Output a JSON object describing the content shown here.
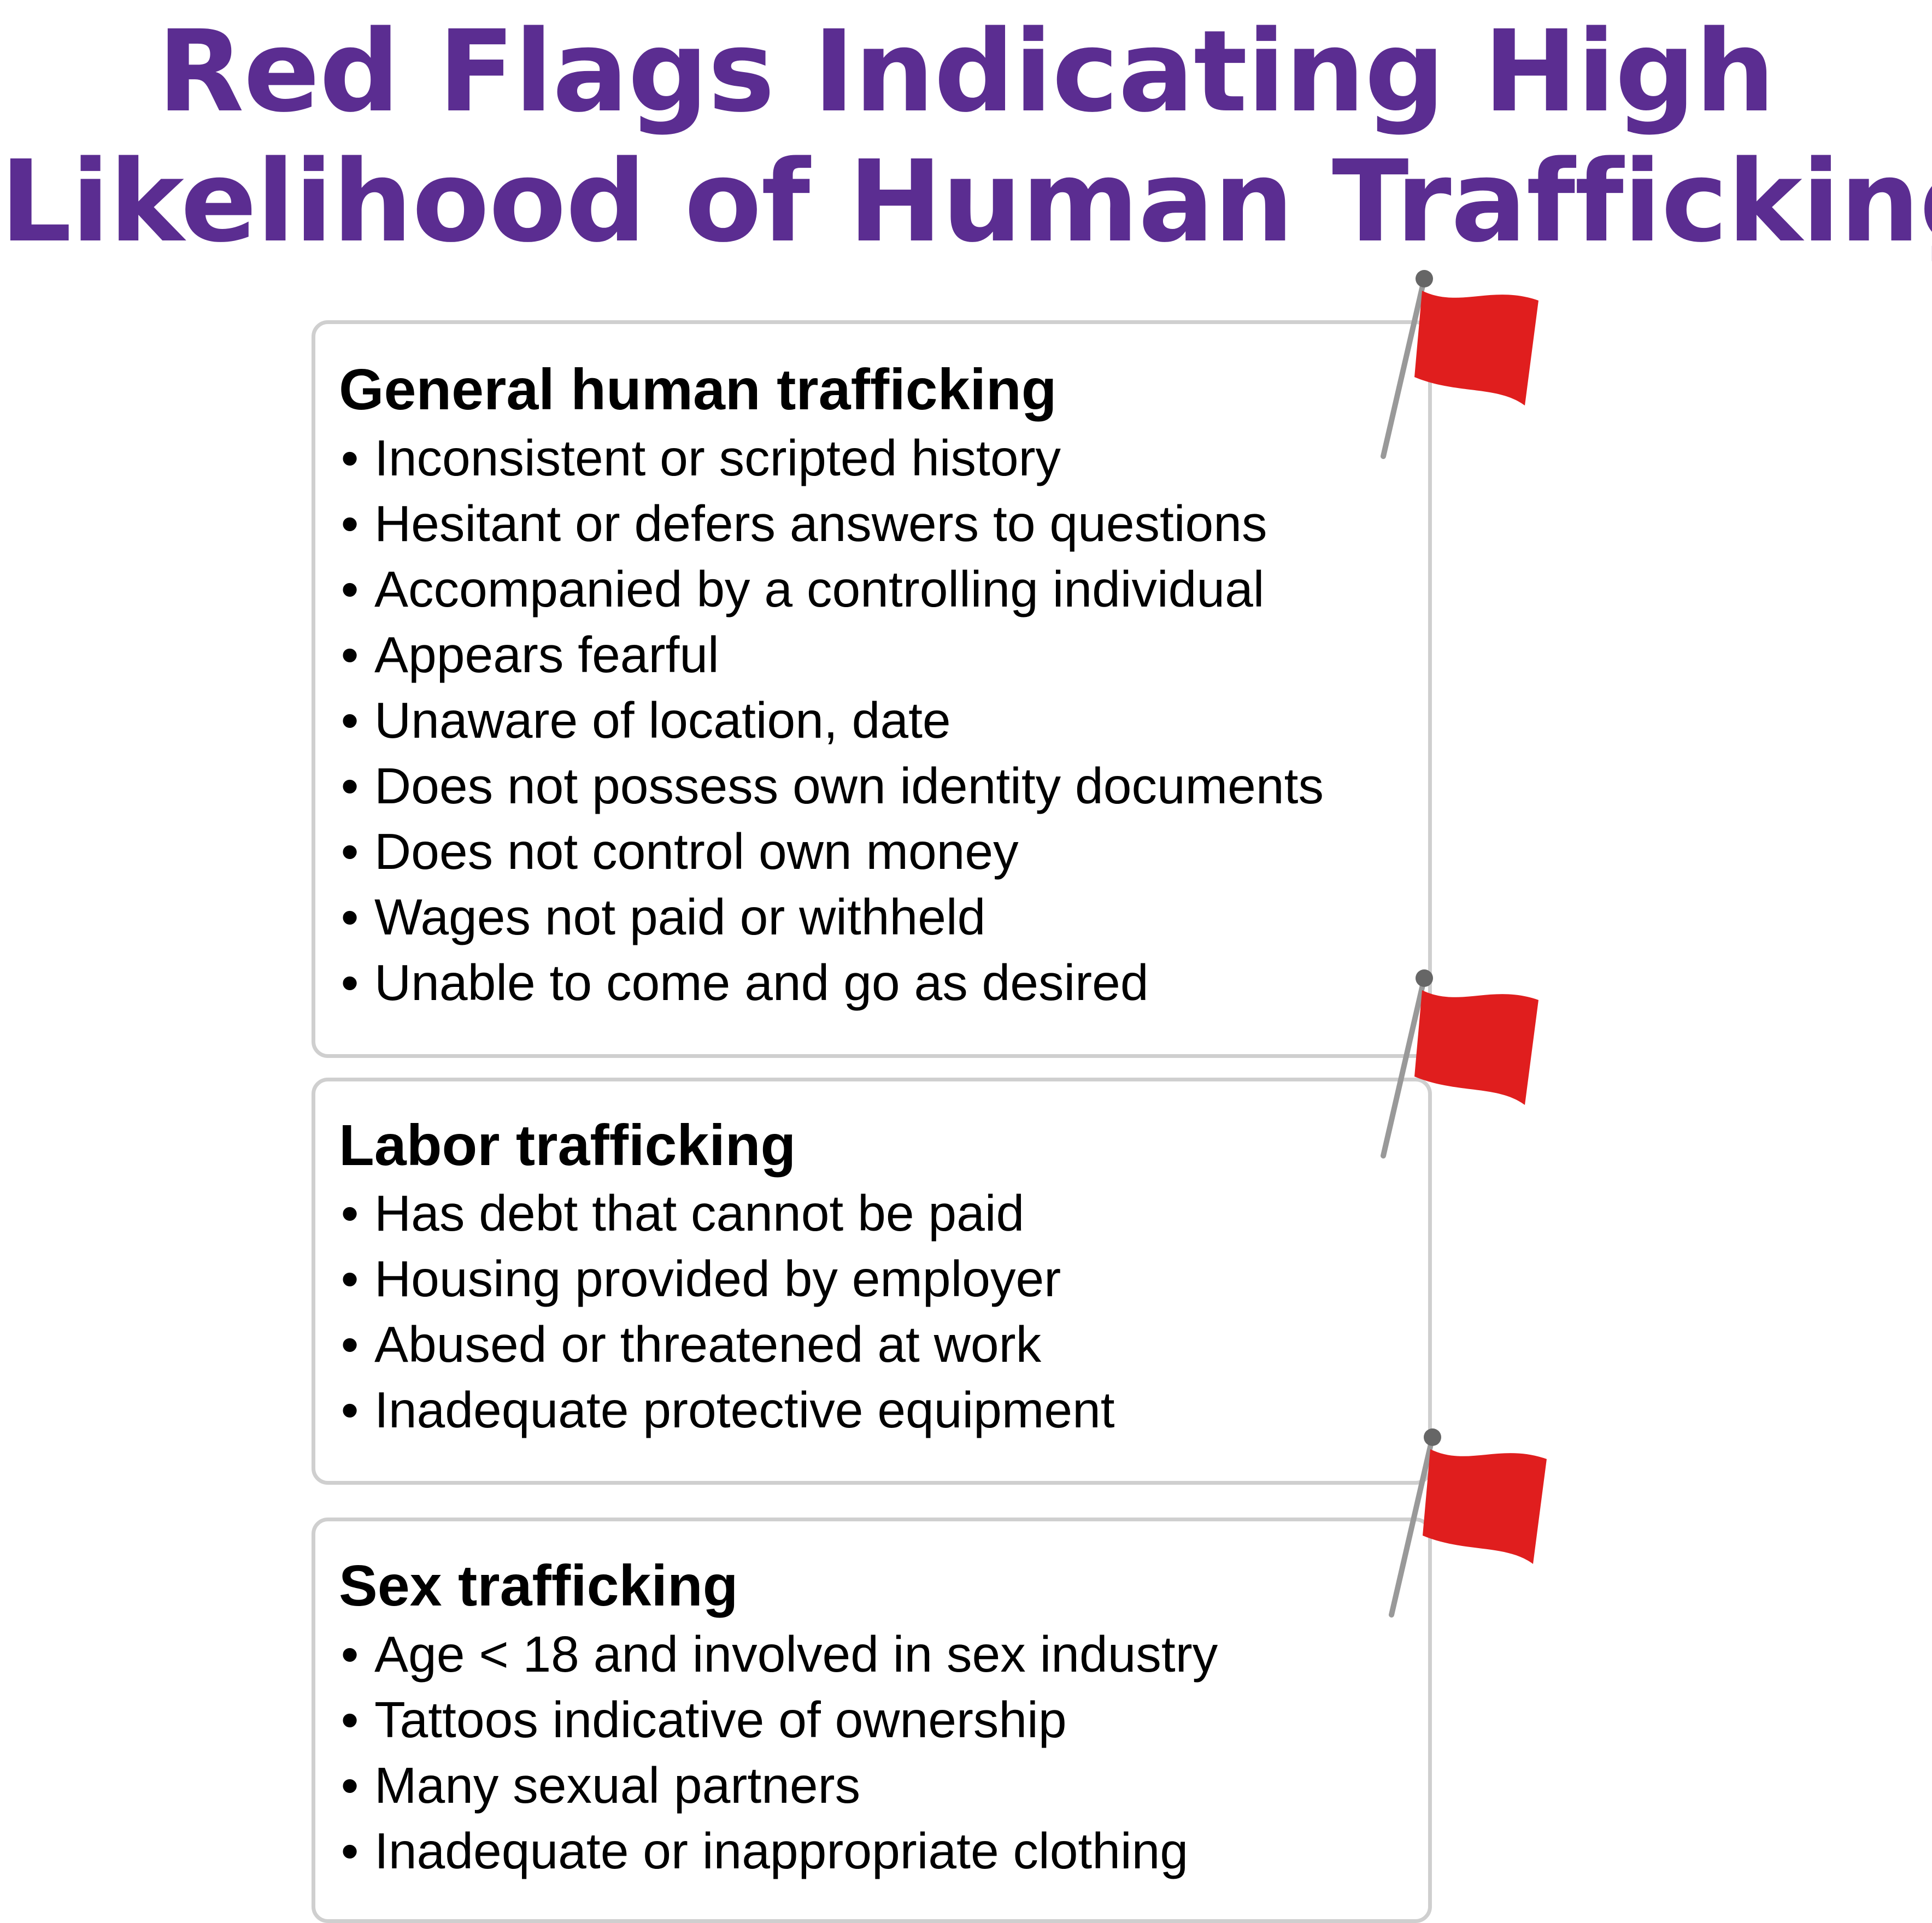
{
  "title": {
    "line1": "Red Flags Indicating High",
    "line2": "Likelihood of Human Trafficking"
  },
  "colors": {
    "title": "#5b2d91",
    "flag": "#e01e1e",
    "pole": "#999999",
    "pole_tip": "#666666",
    "card_border": "#cfcfcf"
  },
  "bullet": "•",
  "sections": [
    {
      "heading": "General human trafficking",
      "icon": "red-flag-icon",
      "items": [
        "Inconsistent or scripted history",
        "Hesitant or defers answers to questions",
        "Accompanied by a controlling individual",
        "Appears fearful",
        "Unaware of location, date",
        "Does not possess own identity documents",
        "Does not control own money",
        "Wages not paid or withheld",
        "Unable to come and go as desired"
      ]
    },
    {
      "heading": "Labor trafficking",
      "icon": "red-flag-icon",
      "items": [
        "Has debt that cannot be paid",
        "Housing provided by employer",
        "Abused or threatened at work",
        "Inadequate protective equipment"
      ]
    },
    {
      "heading": "Sex trafficking",
      "icon": "red-flag-icon",
      "items": [
        "Age < 18 and involved in sex industry",
        "Tattoos indicative of ownership",
        "Many sexual partners",
        "Inadequate or inappropriate clothing"
      ]
    }
  ]
}
